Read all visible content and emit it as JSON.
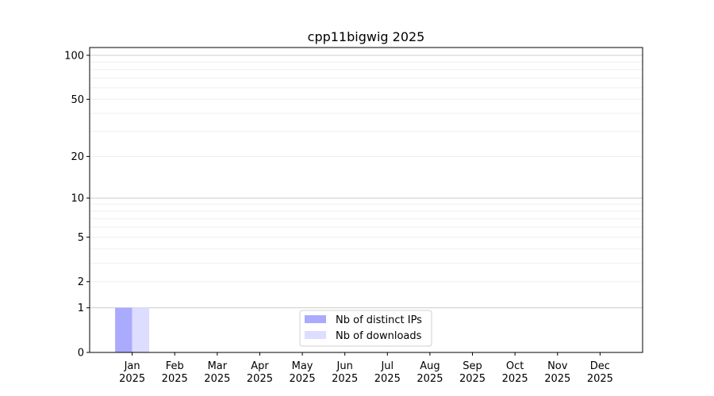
{
  "chart_data": {
    "type": "bar",
    "title": "cpp11bigwig 2025",
    "xlabel": "",
    "ylabel": "",
    "yscale": "log10(1+y)",
    "ylim": [
      0,
      113
    ],
    "yticks": [
      0,
      1,
      2,
      5,
      10,
      20,
      50,
      100
    ],
    "grid": "horizontal major and minor",
    "legend_position": "lower-center",
    "categories": [
      "Jan\n2025",
      "Feb\n2025",
      "Mar\n2025",
      "Apr\n2025",
      "May\n2025",
      "Jun\n2025",
      "Jul\n2025",
      "Aug\n2025",
      "Sep\n2025",
      "Oct\n2025",
      "Nov\n2025",
      "Dec\n2025"
    ],
    "series": [
      {
        "name": "Nb of distinct IPs",
        "color": "#aaaaff",
        "values": [
          1,
          0,
          0,
          0,
          0,
          0,
          0,
          0,
          0,
          0,
          0,
          0
        ]
      },
      {
        "name": "Nb of downloads",
        "color": "#ddddff",
        "values": [
          1,
          0,
          0,
          0,
          0,
          0,
          0,
          0,
          0,
          0,
          0,
          0
        ]
      }
    ]
  }
}
